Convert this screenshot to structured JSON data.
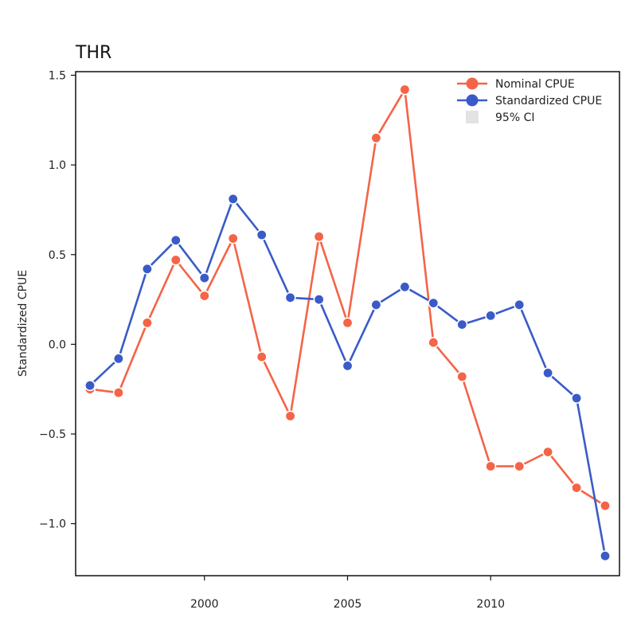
{
  "chart_data": {
    "type": "line",
    "title": "THR",
    "xlabel": "",
    "ylabel": "Standardized CPUE",
    "xlim": [
      1995.5,
      2014.5
    ],
    "ylim": [
      -1.29,
      1.52
    ],
    "x_ticks": [
      2000,
      2005,
      2010
    ],
    "x_tick_labels": [
      "2000",
      "2005",
      "2010"
    ],
    "y_ticks": [
      -1.0,
      -0.5,
      0.0,
      0.5,
      1.0,
      1.5
    ],
    "y_tick_labels": [
      "−1.0",
      "−0.5",
      "0.0",
      "0.5",
      "1.0",
      "1.5"
    ],
    "grid": false,
    "legend_position": "top-right",
    "x": [
      1996,
      1997,
      1998,
      1999,
      2000,
      2001,
      2002,
      2003,
      2004,
      2005,
      2006,
      2007,
      2008,
      2009,
      2010,
      2011,
      2012,
      2013,
      2014
    ],
    "series": [
      {
        "name": "Nominal CPUE",
        "color": "#F46447",
        "values": [
          -0.25,
          -0.27,
          0.12,
          0.47,
          0.27,
          0.59,
          -0.07,
          -0.4,
          0.6,
          0.12,
          1.15,
          1.42,
          0.01,
          -0.18,
          -0.68,
          -0.68,
          -0.6,
          -0.8,
          -0.9
        ]
      },
      {
        "name": "Standardized CPUE",
        "color": "#3A5BC7",
        "values": [
          -0.23,
          -0.08,
          0.42,
          0.58,
          0.37,
          0.81,
          0.61,
          0.26,
          0.25,
          -0.12,
          0.22,
          0.32,
          0.23,
          0.11,
          0.16,
          0.22,
          -0.16,
          -0.3,
          -1.18
        ]
      }
    ],
    "legend": [
      {
        "label": "Nominal CPUE",
        "symbol": "line-point",
        "color": "#F46447"
      },
      {
        "label": "Standardized CPUE",
        "symbol": "line-point",
        "color": "#3A5BC7"
      },
      {
        "label": "95% CI",
        "symbol": "square",
        "color": "#E3E3E3"
      }
    ]
  }
}
